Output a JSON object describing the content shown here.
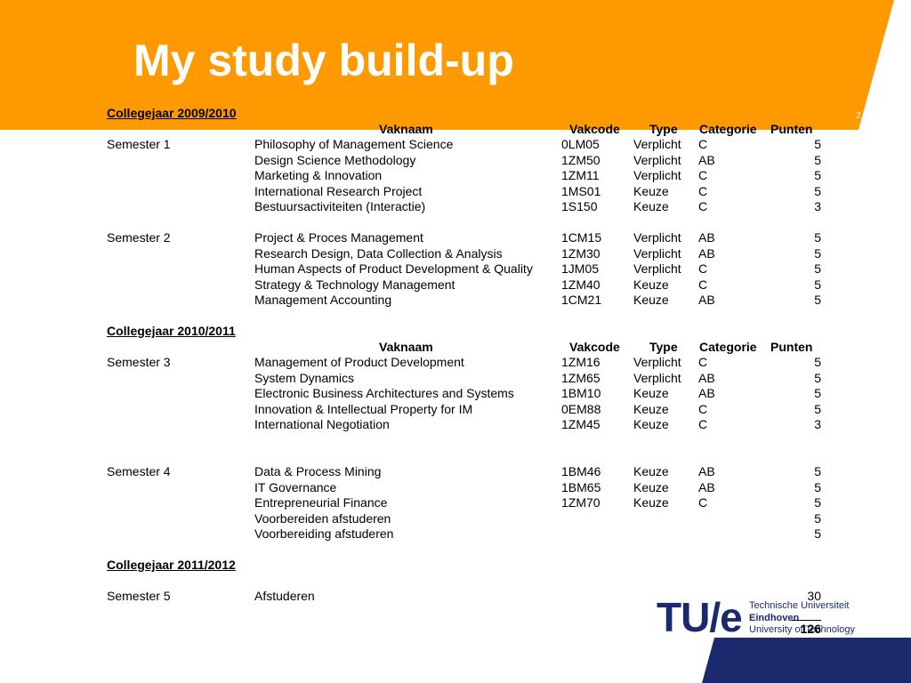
{
  "slide": {
    "title": "My study build-up",
    "number": "2",
    "accent_color": "#ff9900",
    "corner_color": "#1a2a6c"
  },
  "headers": {
    "vaknaam": "Vaknaam",
    "vakcode": "Vakcode",
    "type": "Type",
    "categorie": "Categorie",
    "punten": "Punten"
  },
  "years": [
    {
      "label": "Collegejaar 2009/2010"
    },
    {
      "label": "Collegejaar 2010/2011"
    },
    {
      "label": "Collegejaar 2011/2012"
    }
  ],
  "semesters": [
    {
      "label": "Semester 1",
      "courses": [
        {
          "name": "Philosophy of Management Science",
          "code": "0LM05",
          "type": "Verplicht",
          "cat": "C",
          "pts": "5"
        },
        {
          "name": "Design Science Methodology",
          "code": "1ZM50",
          "type": "Verplicht",
          "cat": "AB",
          "pts": "5"
        },
        {
          "name": "Marketing & Innovation",
          "code": "1ZM11",
          "type": "Verplicht",
          "cat": "C",
          "pts": "5"
        },
        {
          "name": "International Research Project",
          "code": "1MS01",
          "type": "Keuze",
          "cat": "C",
          "pts": "5"
        },
        {
          "name": "Bestuursactiviteiten (Interactie)",
          "code": "1S150",
          "type": "Keuze",
          "cat": "C",
          "pts": "3"
        }
      ]
    },
    {
      "label": "Semester 2",
      "courses": [
        {
          "name": "Project & Proces Management",
          "code": "1CM15",
          "type": "Verplicht",
          "cat": "AB",
          "pts": "5"
        },
        {
          "name": "Research Design, Data Collection & Analysis",
          "code": "1ZM30",
          "type": "Verplicht",
          "cat": "AB",
          "pts": "5"
        },
        {
          "name": "Human Aspects of Product Development & Quality",
          "code": "1JM05",
          "type": "Verplicht",
          "cat": "C",
          "pts": "5"
        },
        {
          "name": "Strategy & Technology Management",
          "code": "1ZM40",
          "type": "Keuze",
          "cat": "C",
          "pts": "5"
        },
        {
          "name": "Management Accounting",
          "code": "1CM21",
          "type": "Keuze",
          "cat": "AB",
          "pts": "5"
        }
      ]
    },
    {
      "label": "Semester 3",
      "courses": [
        {
          "name": "Management of Product Development",
          "code": "1ZM16",
          "type": "Verplicht",
          "cat": "C",
          "pts": "5"
        },
        {
          "name": "System Dynamics",
          "code": "1ZM65",
          "type": "Verplicht",
          "cat": "AB",
          "pts": "5"
        },
        {
          "name": "Electronic Business Architectures and Systems",
          "code": "1BM10",
          "type": "Keuze",
          "cat": "AB",
          "pts": "5"
        },
        {
          "name": "Innovation & Intellectual Property for IM",
          "code": "0EM88",
          "type": "Keuze",
          "cat": "C",
          "pts": "5"
        },
        {
          "name": "International Negotiation",
          "code": "1ZM45",
          "type": "Keuze",
          "cat": "C",
          "pts": "3"
        }
      ]
    },
    {
      "label": "Semester 4",
      "courses": [
        {
          "name": "Data & Process Mining",
          "code": "1BM46",
          "type": "Keuze",
          "cat": "AB",
          "pts": "5"
        },
        {
          "name": "IT Governance",
          "code": "1BM65",
          "type": "Keuze",
          "cat": "AB",
          "pts": "5"
        },
        {
          "name": "Entrepreneurial Finance",
          "code": "1ZM70",
          "type": "Keuze",
          "cat": "C",
          "pts": "5"
        },
        {
          "name": "Voorbereiden afstuderen",
          "code": "",
          "type": "",
          "cat": "",
          "pts": "5"
        },
        {
          "name": "Voorbereiding afstuderen",
          "code": "",
          "type": "",
          "cat": "",
          "pts": "5"
        }
      ]
    },
    {
      "label": "Semester 5",
      "courses": [
        {
          "name": "Afstuderen",
          "code": "",
          "type": "",
          "cat": "",
          "pts": "30"
        }
      ]
    }
  ],
  "total": "126",
  "logo": {
    "mark": "TU/e",
    "line1": "Technische Universiteit",
    "line2": "Eindhoven",
    "line3": "University of Technology"
  }
}
